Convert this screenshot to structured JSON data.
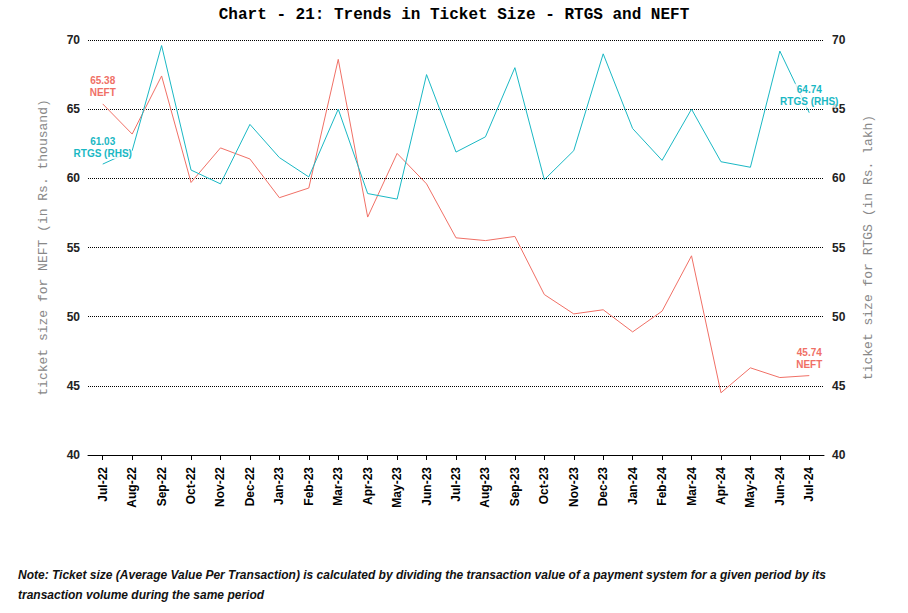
{
  "chart_data": {
    "type": "line",
    "title": "Chart - 21: Trends in Ticket Size - RTGS and NEFT",
    "ylabel": "ticket size for NEFT (in Rs. thousand)",
    "y2label": "ticket size for RTGS (in Rs. lakh)",
    "note": "Note: Ticket size (Average Value Per Transaction) is calculated by dividing the transaction value of a payment system for a given period by its transaction volume during the same period",
    "categories": [
      "Jul-22",
      "Aug-22",
      "Sep-22",
      "Oct-22",
      "Nov-22",
      "Dec-22",
      "Jan-23",
      "Feb-23",
      "Mar-23",
      "Apr-23",
      "May-23",
      "Jun-23",
      "Jul-23",
      "Aug-23",
      "Sep-23",
      "Oct-23",
      "Nov-23",
      "Dec-23",
      "Jan-24",
      "Feb-24",
      "Mar-24",
      "Apr-24",
      "May-24",
      "Jun-24",
      "Jul-24"
    ],
    "series": [
      {
        "name": "NEFT",
        "color": "#f07066",
        "values": [
          65.38,
          63.2,
          67.4,
          59.7,
          62.2,
          61.4,
          58.6,
          59.3,
          68.6,
          57.2,
          61.8,
          59.6,
          55.7,
          55.5,
          55.8,
          51.6,
          50.2,
          50.5,
          48.9,
          50.4,
          54.4,
          44.5,
          46.3,
          45.6,
          45.74
        ]
      },
      {
        "name": "RTGS (RHS)",
        "color": "#1ab8c4",
        "axis": "y2",
        "values": [
          61.03,
          62.0,
          69.6,
          60.6,
          59.6,
          63.9,
          61.5,
          60.1,
          65.0,
          58.9,
          58.5,
          67.5,
          61.9,
          63.0,
          68.0,
          59.9,
          62.0,
          69.0,
          63.6,
          61.3,
          65.0,
          61.2,
          60.8,
          69.2,
          64.74
        ]
      }
    ],
    "annotations": [
      {
        "series": "NEFT",
        "category": "Jul-22",
        "text": "65.38"
      },
      {
        "series": "NEFT",
        "category": "Jul-22",
        "text": "NEFT"
      },
      {
        "series": "RTGS (RHS)",
        "category": "Jul-22",
        "text": "61.03"
      },
      {
        "series": "RTGS (RHS)",
        "category": "Jul-22",
        "text": "RTGS (RHS)"
      },
      {
        "series": "RTGS (RHS)",
        "category": "Jul-24",
        "text": "64.74"
      },
      {
        "series": "RTGS (RHS)",
        "category": "Jul-24",
        "text": "RTGS (RHS)"
      },
      {
        "series": "NEFT",
        "category": "Jul-24",
        "text": "45.74"
      },
      {
        "series": "NEFT",
        "category": "Jul-24",
        "text": "NEFT"
      }
    ],
    "ylim": [
      40,
      70
    ],
    "yticks": [
      40,
      45,
      50,
      55,
      60,
      65,
      70
    ],
    "y2lim": [
      40,
      70
    ],
    "y2ticks": [
      40,
      45,
      50,
      55,
      60,
      65,
      70
    ],
    "grid": true
  }
}
